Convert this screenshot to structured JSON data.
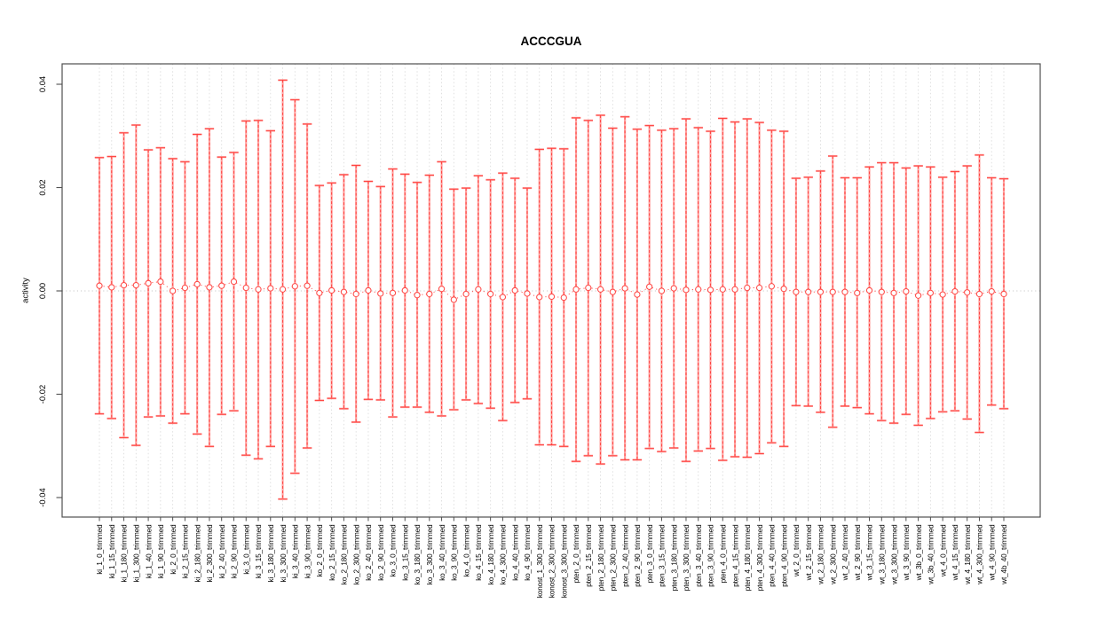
{
  "title": "ACCCGUA",
  "chart_data": {
    "type": "errorbar",
    "title": "ACCCGUA",
    "xlabel": "",
    "ylabel": "activity",
    "ylim": [
      -0.0438,
      0.044
    ],
    "yticks": [
      0.04,
      0.02,
      0.0,
      -0.02,
      -0.04
    ],
    "ytick_labels": [
      "0.04",
      "0.02",
      "0.00",
      "-0.02",
      "-0.04"
    ],
    "grid": "vertical-dotted",
    "zero_line_dotted": true,
    "legend": "none",
    "colors": {
      "bar": "#ffa3a1",
      "bar_dash": "#ff3b38",
      "point": "#ff4a47",
      "grid": "#dcdcdc",
      "zero_line": "#c9c9c9",
      "frame": "#4f4f4f",
      "text": "#000000",
      "background": "#ffffff"
    },
    "categories": [
      "ki_1_0_trimmed",
      "ki_1_15_trimmed",
      "ki_1_180_trimmed",
      "ki_1_300_trimmed",
      "ki_1_40_trimmed",
      "ki_1_90_trimmed",
      "ki_2_0_trimmed",
      "ki_2_15_trimmed",
      "ki_2_180_trimmed",
      "ki_2_300_trimmed",
      "ki_2_40_trimmed",
      "ki_2_90_trimmed",
      "ki_3_0_trimmed",
      "ki_3_15_trimmed",
      "ki_3_180_trimmed",
      "ki_3_300_trimmed",
      "ki_3_40_trimmed",
      "ki_3_90_trimmed",
      "ko_2_0_trimmed",
      "ko_2_15_trimmed",
      "ko_2_180_trimmed",
      "ko_2_300_trimmed",
      "ko_2_40_trimmed",
      "ko_2_90_trimmed",
      "ko_3_0_trimmed",
      "ko_3_15_trimmed",
      "ko_3_180_trimmed",
      "ko_3_300_trimmed",
      "ko_3_40_trimmed",
      "ko_3_90_trimmed",
      "ko_4_0_trimmed",
      "ko_4_15_trimmed",
      "ko_4_180_trimmed",
      "ko_4_300_trimmed",
      "ko_4_40_trimmed",
      "ko_4_90_trimmed",
      "konost_1_300_trimmed",
      "konost_2_300_trimmed",
      "konost_3_300_trimmed",
      "pten_2_0_trimmed",
      "pten_2_15_trimmed",
      "pten_2_180_trimmed",
      "pten_2_300_trimmed",
      "pten_2_40_trimmed",
      "pten_2_90_trimmed",
      "pten_3_0_trimmed",
      "pten_3_15_trimmed",
      "pten_3_180_trimmed",
      "pten_3_300_trimmed",
      "pten_3_40_trimmed",
      "pten_3_90_trimmed",
      "pten_4_0_trimmed",
      "pten_4_15_trimmed",
      "pten_4_180_trimmed",
      "pten_4_300_trimmed",
      "pten_4_40_trimmed",
      "pten_4_90_trimmed",
      "wt_2_0_trimmed",
      "wt_2_15_trimmed",
      "wt_2_180_trimmed",
      "wt_2_300_trimmed",
      "wt_2_40_trimmed",
      "wt_2_90_trimmed",
      "wt_3_15_trimmed",
      "wt_3_180_trimmed",
      "wt_3_300_trimmed",
      "wt_3_90_trimmed",
      "wt_3b_0_trimmed",
      "wt_3b_40_trimmed",
      "wt_4_0_trimmed",
      "wt_4_15_trimmed",
      "wt_4_180_trimmed",
      "wt_4_300_trimmed",
      "wt_4_90_trimmed",
      "wt_4b_40_trimmed"
    ],
    "series": [
      {
        "name": "upper",
        "values": [
          0.0258,
          0.026,
          0.0306,
          0.0321,
          0.0273,
          0.0277,
          0.0256,
          0.025,
          0.0303,
          0.0314,
          0.0259,
          0.0268,
          0.0329,
          0.033,
          0.031,
          0.0408,
          0.037,
          0.0323,
          0.0204,
          0.0209,
          0.0225,
          0.0243,
          0.0212,
          0.0202,
          0.0236,
          0.0226,
          0.021,
          0.0224,
          0.025,
          0.0197,
          0.0199,
          0.0223,
          0.0215,
          0.0228,
          0.0218,
          0.0199,
          0.0274,
          0.0276,
          0.0275,
          0.0335,
          0.033,
          0.034,
          0.0315,
          0.0337,
          0.0313,
          0.032,
          0.0311,
          0.0314,
          0.0333,
          0.0316,
          0.0309,
          0.0334,
          0.0327,
          0.0333,
          0.0326,
          0.0311,
          0.0309,
          0.0218,
          0.022,
          0.0232,
          0.0261,
          0.0219,
          0.0219,
          0.024,
          0.0248,
          0.0248,
          0.0238,
          0.0242,
          0.024,
          0.022,
          0.0231,
          0.0242,
          0.0263,
          0.0219,
          0.0217
        ]
      },
      {
        "name": "center",
        "values": [
          0.001,
          0.0007,
          0.0011,
          0.0011,
          0.0015,
          0.0018,
          0.0,
          0.0006,
          0.0013,
          0.0007,
          0.001,
          0.0018,
          0.0006,
          0.0003,
          0.0005,
          0.0003,
          0.0009,
          0.001,
          -0.0004,
          0.0001,
          -0.0002,
          -0.0006,
          0.0001,
          -0.0005,
          -0.0004,
          0.0001,
          -0.0008,
          -0.0006,
          0.0004,
          -0.0017,
          -0.0006,
          0.0003,
          -0.0006,
          -0.0012,
          0.0001,
          -0.0005,
          -0.0012,
          -0.0011,
          -0.0013,
          0.0003,
          0.0006,
          0.0003,
          -0.0002,
          0.0005,
          -0.0007,
          0.0008,
          0.0,
          0.0005,
          0.0002,
          0.0003,
          0.0002,
          0.0003,
          0.0003,
          0.0006,
          0.0006,
          0.0009,
          0.0004,
          -0.0002,
          -0.0002,
          -0.0002,
          -0.0002,
          -0.0002,
          -0.0004,
          0.0001,
          -0.0002,
          -0.0004,
          -0.0001,
          -0.0009,
          -0.0004,
          -0.0007,
          -0.0001,
          -0.0003,
          -0.0006,
          -0.0001,
          -0.0006
        ]
      },
      {
        "name": "lower",
        "values": [
          -0.0238,
          -0.0247,
          -0.0284,
          -0.0299,
          -0.0244,
          -0.0242,
          -0.0256,
          -0.0238,
          -0.0277,
          -0.0301,
          -0.0239,
          -0.0232,
          -0.0318,
          -0.0325,
          -0.0301,
          -0.0403,
          -0.0353,
          -0.0304,
          -0.0212,
          -0.0208,
          -0.0228,
          -0.0254,
          -0.021,
          -0.0211,
          -0.0244,
          -0.0225,
          -0.0225,
          -0.0235,
          -0.0242,
          -0.023,
          -0.0211,
          -0.0218,
          -0.0227,
          -0.0251,
          -0.0216,
          -0.0209,
          -0.0298,
          -0.0298,
          -0.0301,
          -0.033,
          -0.0319,
          -0.0335,
          -0.0319,
          -0.0327,
          -0.0327,
          -0.0305,
          -0.0311,
          -0.0304,
          -0.033,
          -0.031,
          -0.0305,
          -0.0328,
          -0.0321,
          -0.0322,
          -0.0315,
          -0.0294,
          -0.0301,
          -0.0222,
          -0.0223,
          -0.0235,
          -0.0264,
          -0.0223,
          -0.0226,
          -0.0238,
          -0.0251,
          -0.0256,
          -0.0239,
          -0.026,
          -0.0247,
          -0.0234,
          -0.0232,
          -0.0248,
          -0.0274,
          -0.0221,
          -0.0228
        ]
      }
    ]
  }
}
